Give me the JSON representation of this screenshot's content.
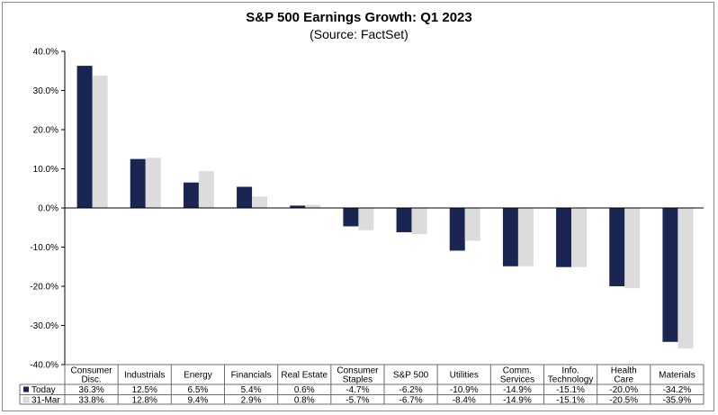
{
  "chart_data": {
    "type": "bar",
    "title": "S&P 500 Earnings Growth: Q1 2023",
    "subtitle": "(Source: FactSet)",
    "categories": [
      [
        "Consumer",
        "Disc."
      ],
      [
        "Industrials"
      ],
      [
        "Energy"
      ],
      [
        "Financials"
      ],
      [
        "Real Estate"
      ],
      [
        "Consumer",
        "Staples"
      ],
      [
        "S&P 500"
      ],
      [
        "Utilities"
      ],
      [
        "Comm.",
        "Services"
      ],
      [
        "Info.",
        "Technology"
      ],
      [
        "Health",
        "Care"
      ],
      [
        "Materials"
      ]
    ],
    "series": [
      {
        "name": "Today",
        "color": "#1a2552",
        "values": [
          36.3,
          12.5,
          6.5,
          5.4,
          0.6,
          -4.7,
          -6.2,
          -10.9,
          -14.9,
          -15.1,
          -20.0,
          -34.2
        ],
        "labels": [
          "36.3%",
          "12.5%",
          "6.5%",
          "5.4%",
          "0.6%",
          "-4.7%",
          "-6.2%",
          "-10.9%",
          "-14.9%",
          "-15.1%",
          "-20.0%",
          "-34.2%"
        ]
      },
      {
        "name": "31-Mar",
        "color": "#dcdcdc",
        "values": [
          33.8,
          12.8,
          9.4,
          2.9,
          0.8,
          -5.7,
          -6.7,
          -8.4,
          -14.9,
          -15.1,
          -20.5,
          -35.9
        ],
        "labels": [
          "33.8%",
          "12.8%",
          "9.4%",
          "2.9%",
          "0.8%",
          "-5.7%",
          "-6.7%",
          "-8.4%",
          "-14.9%",
          "-15.1%",
          "-20.5%",
          "-35.9%"
        ]
      }
    ],
    "ylim": [
      -40,
      40
    ],
    "yticks": [
      40,
      30,
      20,
      10,
      0,
      -10,
      -20,
      -30,
      -40
    ],
    "ytick_labels": [
      "40.0%",
      "30.0%",
      "20.0%",
      "10.0%",
      "0.0%",
      "-10.0%",
      "-20.0%",
      "-30.0%",
      "-40.0%"
    ],
    "grid": false,
    "legend": "data-table"
  }
}
